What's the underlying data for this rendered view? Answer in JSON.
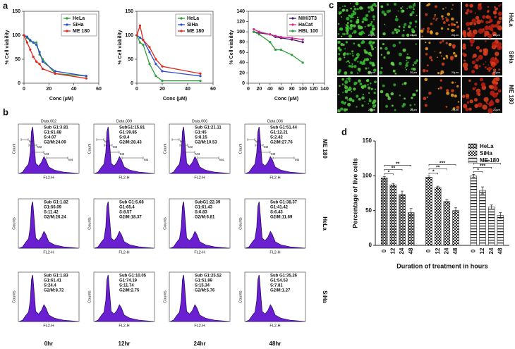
{
  "panel_labels": [
    "a",
    "b",
    "c",
    "d"
  ],
  "chart_data": [
    {
      "type": "line",
      "x_label": "Conc (μM)",
      "y_label": "% Cell viability",
      "xlim": [
        0,
        60
      ],
      "xticks": [
        0,
        20,
        40,
        60
      ],
      "ylim": [
        0,
        150
      ],
      "yticks": [
        0,
        50,
        100,
        150
      ],
      "legend": "upper right",
      "x": [
        0,
        2.5,
        5,
        7.5,
        10,
        12.5,
        15,
        25,
        50
      ],
      "series": [
        {
          "name": "HeLa",
          "color": "#2e9e3a",
          "values": [
            100,
            95,
            88,
            85,
            85,
            60,
            50,
            20,
            15
          ]
        },
        {
          "name": "SiHa",
          "color": "#2b4fc4",
          "values": [
            100,
            97,
            90,
            85,
            80,
            65,
            45,
            25,
            15
          ]
        },
        {
          "name": "ME 180",
          "color": "#e0261e",
          "values": [
            100,
            85,
            70,
            55,
            45,
            40,
            30,
            20,
            10
          ]
        }
      ]
    },
    {
      "type": "line",
      "x_label": "Conc (μM)",
      "y_label": "% Cell viability",
      "xlim": [
        0,
        60
      ],
      "xticks": [
        0,
        20,
        40,
        60
      ],
      "ylim": [
        0,
        150
      ],
      "yticks": [
        0,
        50,
        100,
        150
      ],
      "legend": "upper right",
      "x": [
        0,
        2.5,
        5,
        10,
        15,
        20,
        50
      ],
      "series": [
        {
          "name": "HeLa",
          "color": "#2e9e3a",
          "values": [
            100,
            85,
            80,
            40,
            15,
            5,
            5
          ]
        },
        {
          "name": "SiHa",
          "color": "#2b4fc4",
          "values": [
            100,
            95,
            90,
            65,
            40,
            25,
            15
          ]
        },
        {
          "name": "ME 180",
          "color": "#e0261e",
          "values": [
            100,
            120,
            90,
            75,
            50,
            35,
            20
          ]
        }
      ]
    },
    {
      "type": "line",
      "x_label": "Conc (μM)",
      "y_label": "% Cell viability",
      "xlim": [
        0,
        140
      ],
      "xticks": [
        0,
        20,
        40,
        60,
        80,
        100,
        120,
        140
      ],
      "ylim": [
        0,
        140
      ],
      "yticks": [
        0,
        20,
        40,
        60,
        80,
        100,
        120,
        140
      ],
      "legend": "upper right",
      "x": [
        10,
        20,
        40,
        50,
        60,
        80,
        100
      ],
      "series": [
        {
          "name": "NIH/3T3",
          "color": "#4a1670",
          "values": [
            100,
            98,
            95,
            90,
            88,
            85,
            80
          ]
        },
        {
          "name": "HaCat",
          "color": "#d62a8c",
          "values": [
            105,
            100,
            95,
            92,
            90,
            88,
            85
          ]
        },
        {
          "name": "HBL 100",
          "color": "#2e9e3a",
          "values": [
            100,
            95,
            80,
            65,
            65,
            55,
            40
          ]
        }
      ]
    },
    {
      "type": "bar",
      "x_label": "Duration of treatment in hours",
      "y_label": "Percentage of live cells",
      "ylim": [
        0,
        150
      ],
      "yticks": [
        0,
        50,
        100,
        150
      ],
      "legend": "upper right",
      "categories": [
        "0",
        "12",
        "24",
        "48"
      ],
      "series": [
        {
          "name": "HeLa",
          "color": "#222222",
          "pattern": "grid",
          "values": [
            97,
            87,
            73,
            47
          ],
          "errors": [
            2,
            2,
            5,
            6
          ],
          "significance": [
            "*",
            "**",
            "**"
          ]
        },
        {
          "name": "SiHa",
          "color": "#222222",
          "pattern": "checker",
          "values": [
            98,
            83,
            63,
            50
          ],
          "errors": [
            2,
            2,
            3,
            4
          ],
          "significance": [
            "*",
            "**",
            "***"
          ]
        },
        {
          "name": "ME 180",
          "color": "#222222",
          "pattern": "hlines",
          "values": [
            100,
            79,
            55,
            43
          ],
          "errors": [
            2,
            5,
            3,
            4
          ],
          "significance": [
            "*",
            "***",
            "***"
          ]
        }
      ]
    }
  ],
  "flow": {
    "row_labels": [
      "ME 180",
      "HeLa",
      "SiHa"
    ],
    "col_labels": [
      "0hr",
      "12hr",
      "24hr",
      "48hr"
    ],
    "x_label": "FL2-H",
    "y_labels": [
      "Count",
      "Counts",
      "Counts"
    ],
    "data_names": [
      "Data.002",
      "Data.009",
      "Data.006",
      "Data.006"
    ],
    "gate_labels": [
      "M1",
      "M2",
      "M3",
      "M4"
    ],
    "stats": [
      [
        [
          "Sub G1:3.81",
          "G1:61.68",
          "S:4.07",
          "G2/M:24.09"
        ],
        [
          "SubG1:15.81",
          "G1:39.85",
          "S:8.4",
          "G2/M:28.43"
        ],
        [
          "Sub G1:21.11",
          "G1:45",
          "S:8.15",
          "G2/M:10.53"
        ],
        [
          "Sub G1:51.44",
          "G1:12.21",
          "S:2.42",
          "G2/M:27.76"
        ]
      ],
      [
        [
          "Sub G1:1.82",
          "G1:56.09",
          "S:11.42",
          "G2/M:26.24"
        ],
        [
          "Sub G1:5.68",
          "G1:65.4",
          "S:8.57",
          "G2/M:18.37"
        ],
        [
          "SubG1:22.39",
          "G1:61.43",
          "S:6.83",
          "G2/M:6.81"
        ],
        [
          "Sub G1:38.37",
          "G1:41.42",
          "S:6.43",
          "G2/M:11.69"
        ]
      ],
      [
        [
          "Sub G1:1.83",
          "G1:61.41",
          "S:24.4",
          "G2/M:8.72"
        ],
        [
          "Sub G1:10.05",
          "G1:74.19",
          "S:11.74",
          "G2/M:2.75"
        ],
        [
          "Sub G1:25.52",
          "G1:51.99",
          "S:15.34",
          "G2/M:5.76"
        ],
        [
          "Sub G1:35.26",
          "G1:54.53",
          "S:7.81",
          "G2/M:1.27"
        ]
      ]
    ]
  },
  "micro": {
    "row_labels": [
      "HeLa",
      "SiHa",
      "ME 180"
    ],
    "scale_label": "20μm"
  }
}
